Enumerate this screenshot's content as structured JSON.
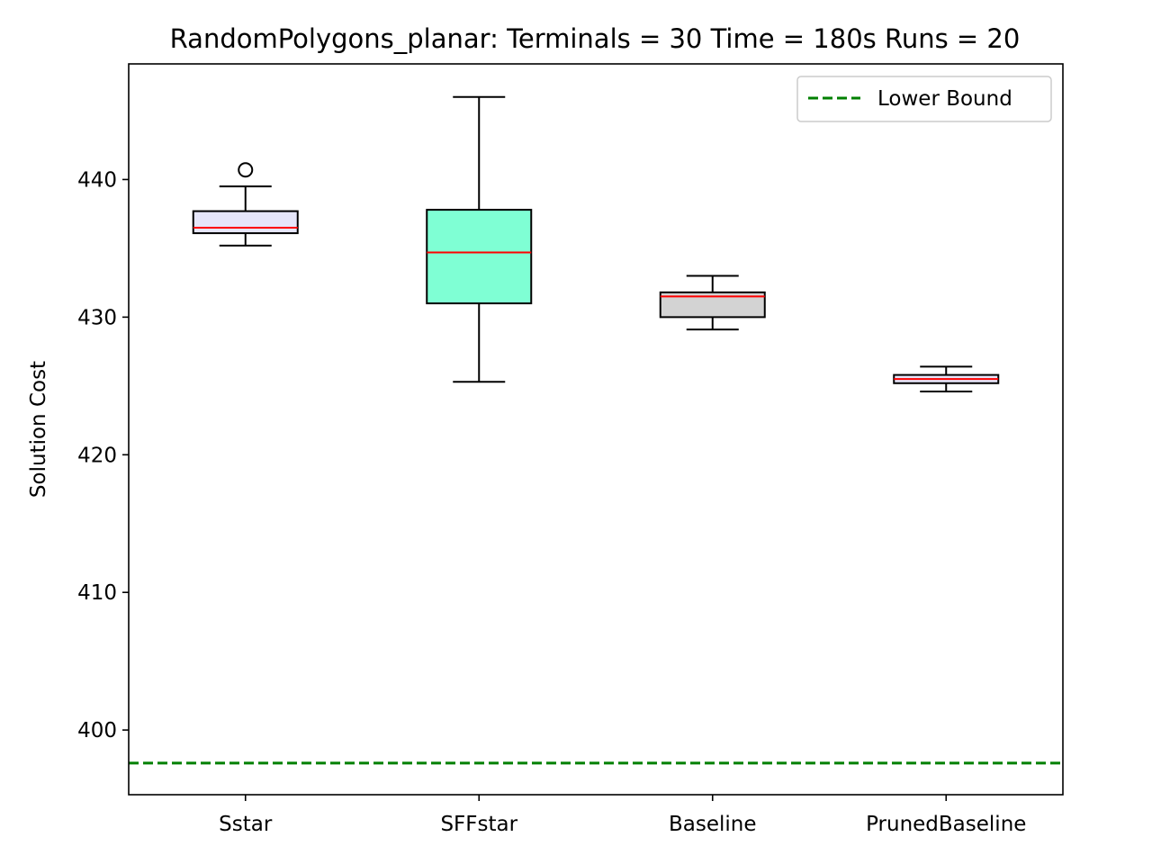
{
  "chart_data": {
    "type": "box",
    "title": "RandomPolygons_planar:  Terminals = 30  Time = 180s  Runs = 20",
    "xlabel": "",
    "ylabel": "Solution Cost",
    "ylim": [
      395.3,
      448.4
    ],
    "yticks": [
      400,
      410,
      420,
      430,
      440
    ],
    "grid": false,
    "legend_position": "top-right",
    "categories": [
      "Sstar",
      "SFFstar",
      "Baseline",
      "PrunedBaseline"
    ],
    "boxes": [
      {
        "name": "Sstar",
        "whisker_low": 435.2,
        "q1": 436.1,
        "median": 436.5,
        "q3": 437.7,
        "whisker_high": 439.5,
        "outliers": [
          440.7
        ],
        "fill": "#e6e6fa"
      },
      {
        "name": "SFFstar",
        "whisker_low": 425.3,
        "q1": 431.0,
        "median": 434.7,
        "q3": 437.8,
        "whisker_high": 446.0,
        "outliers": [],
        "fill": "#7fffd4"
      },
      {
        "name": "Baseline",
        "whisker_low": 429.1,
        "q1": 430.0,
        "median": 431.5,
        "q3": 431.8,
        "whisker_high": 433.0,
        "outliers": [],
        "fill": "#d3d3d3"
      },
      {
        "name": "PrunedBaseline",
        "whisker_low": 424.6,
        "q1": 425.2,
        "median": 425.5,
        "q3": 425.8,
        "whisker_high": 426.4,
        "outliers": [],
        "fill": "#e6e6fa"
      }
    ],
    "lower_bound": {
      "label": "Lower Bound",
      "value": 397.6,
      "color": "#008000"
    },
    "median_color": "#ff0000"
  }
}
